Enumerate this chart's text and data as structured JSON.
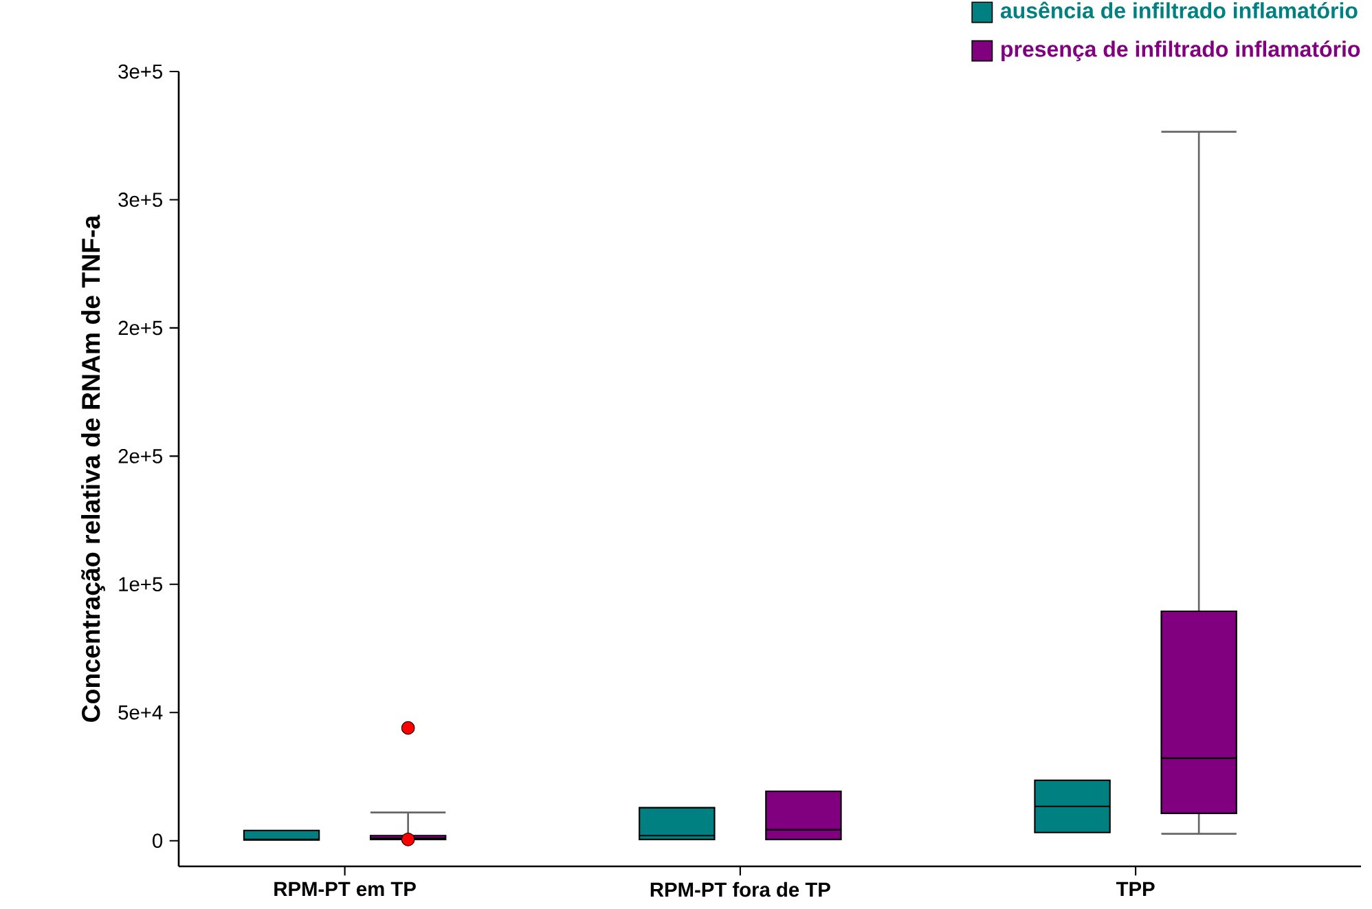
{
  "chart_data": {
    "type": "box",
    "ylabel": "Concentração relativa de RNAm de TNF-a",
    "categories": [
      "RPM-PT em TP",
      "RPM-PT fora de TP",
      "TPP"
    ],
    "series": [
      {
        "name": "ausência de infiltrado inflamatório",
        "color": "#008080",
        "boxes": [
          {
            "low": 300,
            "q1": 300,
            "median": 500,
            "q3": 4000,
            "high": 4000
          },
          {
            "low": 500,
            "q1": 500,
            "median": 2000,
            "q3": 12900,
            "high": 12900
          },
          {
            "low": 3200,
            "q1": 3200,
            "median": 13400,
            "q3": 23600,
            "high": 23600
          }
        ]
      },
      {
        "name": "presença de infiltrado inflamatório",
        "color": "#800080",
        "boxes": [
          {
            "low": 500,
            "q1": 500,
            "median": 1000,
            "q3": 2000,
            "high": 11000,
            "outliers": [
              44000,
              500
            ]
          },
          {
            "low": 500,
            "q1": 500,
            "median": 4300,
            "q3": 19300,
            "high": 19300
          },
          {
            "low": 2700,
            "q1": 10700,
            "median": 32200,
            "q3": 89500,
            "high": 276500
          }
        ]
      }
    ],
    "ylim": [
      -10000,
      300000
    ],
    "yticks": [
      0,
      {
        "value": 50000,
        "label": "5e+4"
      },
      {
        "value": 100000,
        "label": "1e+5"
      },
      {
        "value": 150000,
        "label": "2e+5"
      },
      {
        "value": 200000,
        "label": "2e+5"
      },
      {
        "value": 250000,
        "label": "3e+5"
      },
      {
        "value": 300000,
        "label": "3e+5"
      }
    ],
    "grid": false,
    "legend": "top right"
  }
}
